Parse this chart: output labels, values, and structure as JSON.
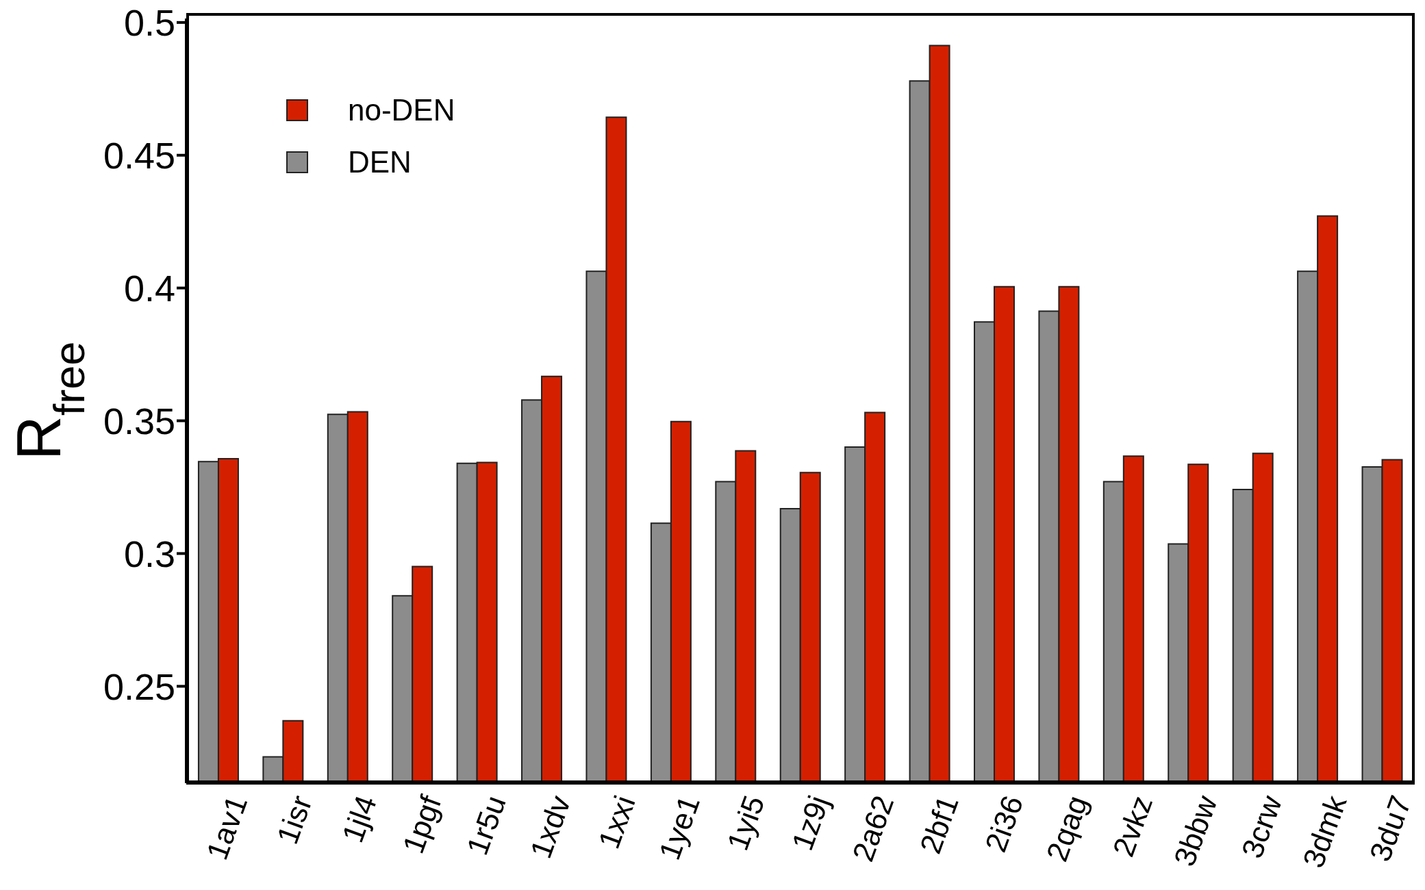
{
  "chart_data": {
    "type": "bar",
    "ylabel": "R$_{free}$",
    "categories": [
      "1av1",
      "1isr",
      "1jl4",
      "1pgf",
      "1r5u",
      "1xdv",
      "1xxi",
      "1ye1",
      "1yi5",
      "1z9j",
      "2a62",
      "2bf1",
      "2i36",
      "2qag",
      "2vkz",
      "3bbw",
      "3crw",
      "3dmk",
      "3du7"
    ],
    "series": [
      {
        "name": "DEN",
        "color": "#8c8c8c",
        "values": [
          0.3346,
          0.2234,
          0.3524,
          0.2841,
          0.334,
          0.3578,
          0.4063,
          0.3114,
          0.3271,
          0.3169,
          0.3401,
          0.478,
          0.3872,
          0.3913,
          0.3271,
          0.3036,
          0.3241,
          0.4063,
          0.3326
        ]
      },
      {
        "name": "no-DEN",
        "color": "#d42000",
        "values": [
          0.3357,
          0.237,
          0.3534,
          0.2951,
          0.3343,
          0.3667,
          0.4643,
          0.3497,
          0.3387,
          0.3305,
          0.3531,
          0.4913,
          0.4005,
          0.4005,
          0.3367,
          0.3336,
          0.3377,
          0.4271,
          0.3353
        ]
      }
    ],
    "ylim": [
      0.2135,
      0.5015
    ],
    "yticks": [
      0.25,
      0.3,
      0.35,
      0.4,
      0.45,
      0.5
    ],
    "grid": false,
    "legend": "top left"
  }
}
